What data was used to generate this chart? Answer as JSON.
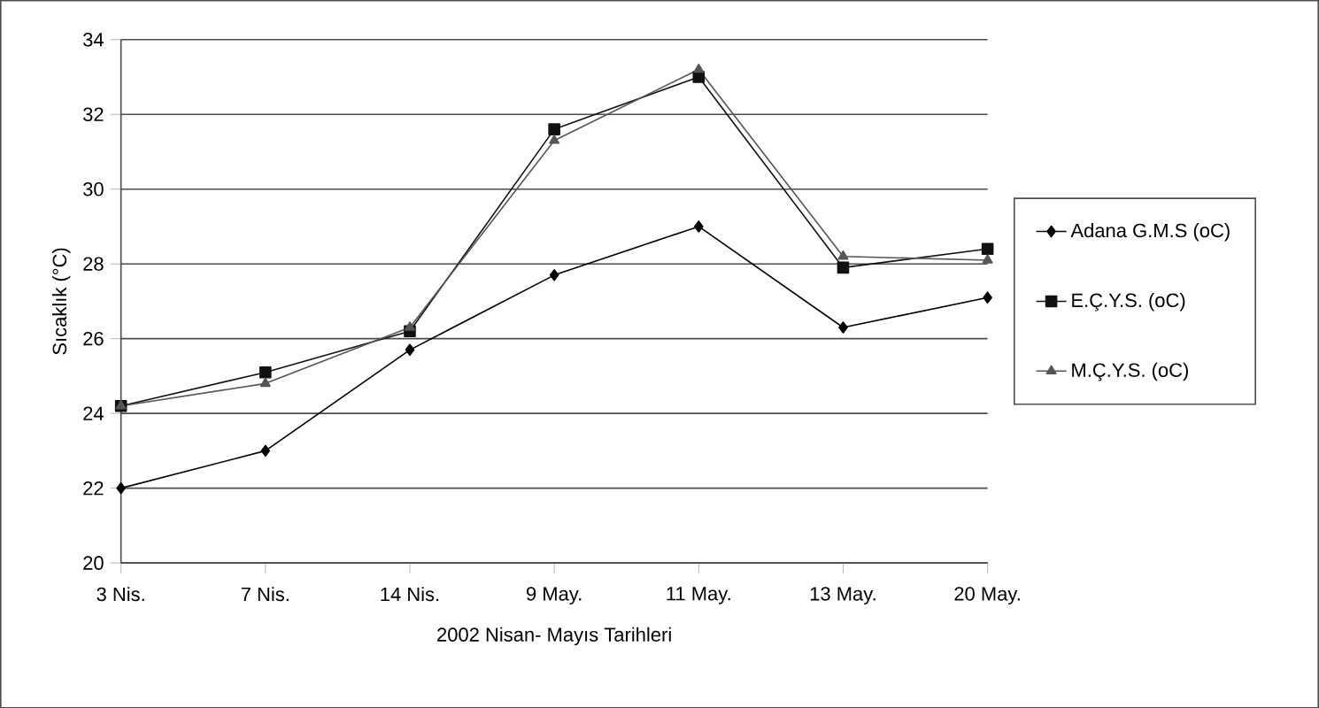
{
  "chart_data": {
    "type": "line",
    "xlabel": "2002 Nisan- Mayıs Tarihleri",
    "ylabel": "Sıcaklık (°C)",
    "categories": [
      "3 Nis.",
      "7 Nis.",
      "14 Nis.",
      "9 May.",
      "11 May.",
      "13 May.",
      "20 May."
    ],
    "series": [
      {
        "name": "Adana G.M.S (oC)",
        "color": "#000000",
        "marker": "diamond",
        "values": [
          22,
          23,
          25.7,
          27.7,
          29,
          26.3,
          27.1
        ]
      },
      {
        "name": "E.Ç.Y.S. (oC)",
        "color": "#111111",
        "marker": "square",
        "values": [
          24.2,
          25.1,
          26.2,
          31.6,
          33.0,
          27.9,
          28.4
        ]
      },
      {
        "name": "M.Ç.Y.S. (oC)",
        "color": "#555555",
        "marker": "triangle",
        "values": [
          24.2,
          24.8,
          26.3,
          31.3,
          33.2,
          28.2,
          28.1
        ]
      }
    ],
    "ylim": [
      20,
      34
    ],
    "yticks": [
      20,
      22,
      24,
      26,
      28,
      30,
      32,
      34
    ],
    "grid": "y",
    "legend": "right",
    "line_style": "solid"
  }
}
